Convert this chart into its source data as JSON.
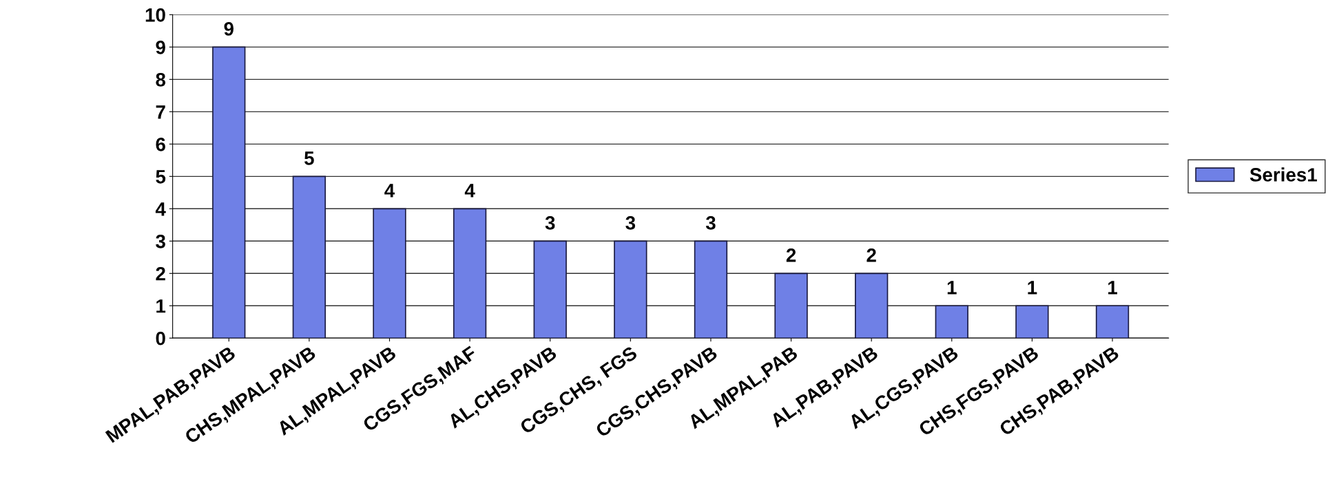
{
  "chart_data": {
    "type": "bar",
    "categories": [
      "MPAL,PAB,PAVB",
      "CHS,MPAL,PAVB",
      "AL,MPAL,PAVB",
      "CGS,FGS,MAF",
      "AL,CHS,PAVB",
      "CGS,CHS, FGS",
      "CGS,CHS,PAVB",
      "AL,MPAL,PAB",
      "AL,PAB,PAVB",
      "AL,CGS,PAVB",
      "CHS,FGS,PAVB",
      "CHS,PAB,PAVB"
    ],
    "series": [
      {
        "name": "Series1",
        "color": "#6f80e6",
        "values": [
          9,
          5,
          4,
          4,
          3,
          3,
          3,
          2,
          2,
          1,
          1,
          1
        ]
      }
    ],
    "ylim": [
      0,
      10
    ],
    "yticks": [
      0,
      1,
      2,
      3,
      4,
      5,
      6,
      7,
      8,
      9,
      10
    ],
    "grid": "y",
    "legend": "right",
    "data_labels": true
  }
}
